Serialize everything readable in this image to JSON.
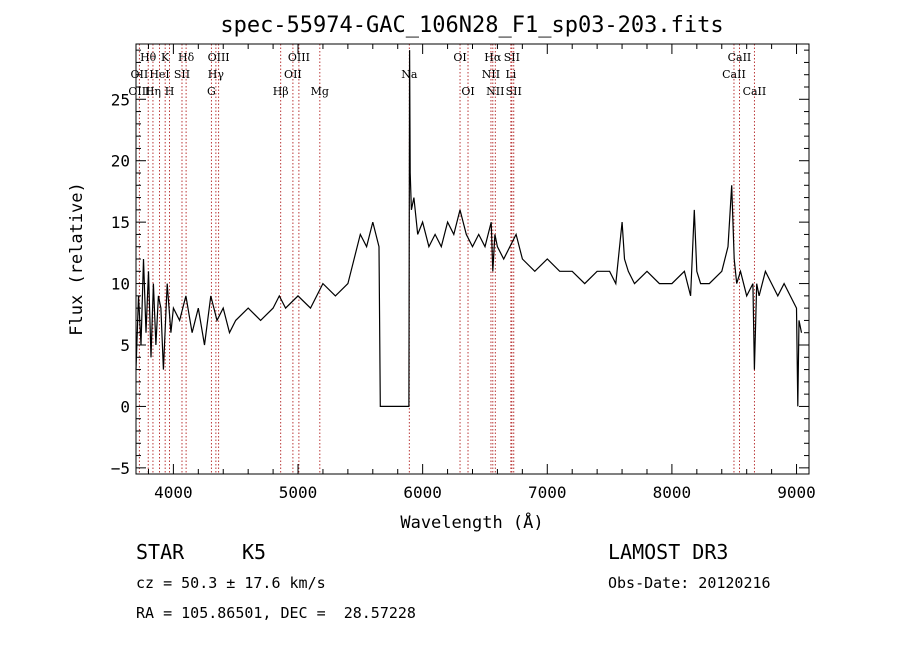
{
  "chart_data": {
    "type": "line",
    "title": "spec-55974-GAC_106N28_F1_sp03-203.fits",
    "xlabel": "Wavelength (Å)",
    "ylabel": "Flux (relative)",
    "xlim": [
      3700,
      9100
    ],
    "ylim": [
      -5.5,
      29.5
    ],
    "xticks": [
      4000,
      5000,
      6000,
      7000,
      8000,
      9000
    ],
    "yticks": [
      -5,
      0,
      5,
      10,
      15,
      20,
      25
    ],
    "grid": false,
    "series": [
      {
        "color": "#000000",
        "x": [
          3700,
          3720,
          3740,
          3760,
          3780,
          3800,
          3820,
          3840,
          3860,
          3880,
          3900,
          3920,
          3950,
          3980,
          4000,
          4050,
          4100,
          4150,
          4200,
          4250,
          4300,
          4350,
          4400,
          4450,
          4500,
          4600,
          4700,
          4800,
          4850,
          4900,
          5000,
          5100,
          5200,
          5300,
          5400,
          5450,
          5500,
          5550,
          5600,
          5650,
          5660,
          5670,
          5700,
          5800,
          5890,
          5895,
          5900,
          5910,
          5930,
          5960,
          6000,
          6050,
          6100,
          6150,
          6200,
          6250,
          6300,
          6350,
          6400,
          6450,
          6500,
          6550,
          6563,
          6580,
          6600,
          6650,
          6700,
          6750,
          6800,
          6900,
          7000,
          7100,
          7200,
          7300,
          7400,
          7500,
          7550,
          7600,
          7620,
          7650,
          7700,
          7800,
          7900,
          8000,
          8100,
          8150,
          8180,
          8200,
          8230,
          8300,
          8400,
          8450,
          8480,
          8500,
          8520,
          8550,
          8600,
          8650,
          8662,
          8680,
          8700,
          8750,
          8800,
          8850,
          8900,
          8950,
          9000,
          9010,
          9020,
          9040
        ],
        "y": [
          3,
          9,
          5,
          12,
          6,
          11,
          4,
          10,
          5,
          9,
          8,
          3,
          10,
          6,
          8,
          7,
          9,
          6,
          8,
          5,
          9,
          7,
          8,
          6,
          7,
          8,
          7,
          8,
          9,
          8,
          9,
          8,
          10,
          9,
          10,
          12,
          14,
          13,
          15,
          13,
          0,
          0,
          0,
          0,
          0,
          29,
          19,
          16,
          17,
          14,
          15,
          13,
          14,
          13,
          15,
          14,
          16,
          14,
          13,
          14,
          13,
          15,
          11,
          14,
          13,
          12,
          13,
          14,
          12,
          11,
          12,
          11,
          11,
          10,
          11,
          11,
          10,
          15,
          12,
          11,
          10,
          11,
          10,
          10,
          11,
          9,
          16,
          11,
          10,
          10,
          11,
          13,
          18,
          12,
          10,
          11,
          9,
          10,
          3,
          10,
          9,
          11,
          10,
          9,
          10,
          9,
          8,
          0,
          7,
          6
        ]
      }
    ],
    "line_labels": [
      {
        "label": "Hθ",
        "x": 3798,
        "row": 1
      },
      {
        "label": "OII",
        "x": 3727,
        "row": 2
      },
      {
        "label": "OIII",
        "x": 3727,
        "row": 3
      },
      {
        "label": "Hη",
        "x": 3836,
        "row": 3
      },
      {
        "label": "HeI",
        "x": 3889,
        "row": 2
      },
      {
        "label": "K",
        "x": 3934,
        "row": 1
      },
      {
        "label": "SII",
        "x": 4069,
        "row": 2
      },
      {
        "label": "H",
        "x": 3969,
        "row": 3
      },
      {
        "label": "Hδ",
        "x": 4102,
        "row": 1
      },
      {
        "label": "OIII",
        "x": 4363,
        "row": 1
      },
      {
        "label": "Hγ",
        "x": 4341,
        "row": 2
      },
      {
        "label": "G",
        "x": 4305,
        "row": 3
      },
      {
        "label": "OIII",
        "x": 5007,
        "row": 1
      },
      {
        "label": "OII",
        "x": 4959,
        "row": 2
      },
      {
        "label": "Hβ",
        "x": 4861,
        "row": 3
      },
      {
        "label": "Mg",
        "x": 5175,
        "row": 3
      },
      {
        "label": "Na",
        "x": 5893,
        "row": 2
      },
      {
        "label": "OI",
        "x": 6300,
        "row": 1
      },
      {
        "label": "OI",
        "x": 6364,
        "row": 3
      },
      {
        "label": "Hα",
        "x": 6563,
        "row": 1
      },
      {
        "label": "SII",
        "x": 6716,
        "row": 1
      },
      {
        "label": "NII",
        "x": 6548,
        "row": 2
      },
      {
        "label": "Li",
        "x": 6708,
        "row": 2
      },
      {
        "label": "NII",
        "x": 6583,
        "row": 3
      },
      {
        "label": "SII",
        "x": 6731,
        "row": 3
      },
      {
        "label": "CaII",
        "x": 8542,
        "row": 1
      },
      {
        "label": "CaII",
        "x": 8498,
        "row": 2
      },
      {
        "label": "CaII",
        "x": 8662,
        "row": 3
      }
    ]
  },
  "info": {
    "class": "STAR",
    "subclass": "K5",
    "survey": "LAMOST DR3",
    "cz": "cz = 50.3 ± 17.6 km/s",
    "obs_date": "Obs-Date: 20120216",
    "radec": "RA = 105.86501, DEC =  28.57228"
  }
}
